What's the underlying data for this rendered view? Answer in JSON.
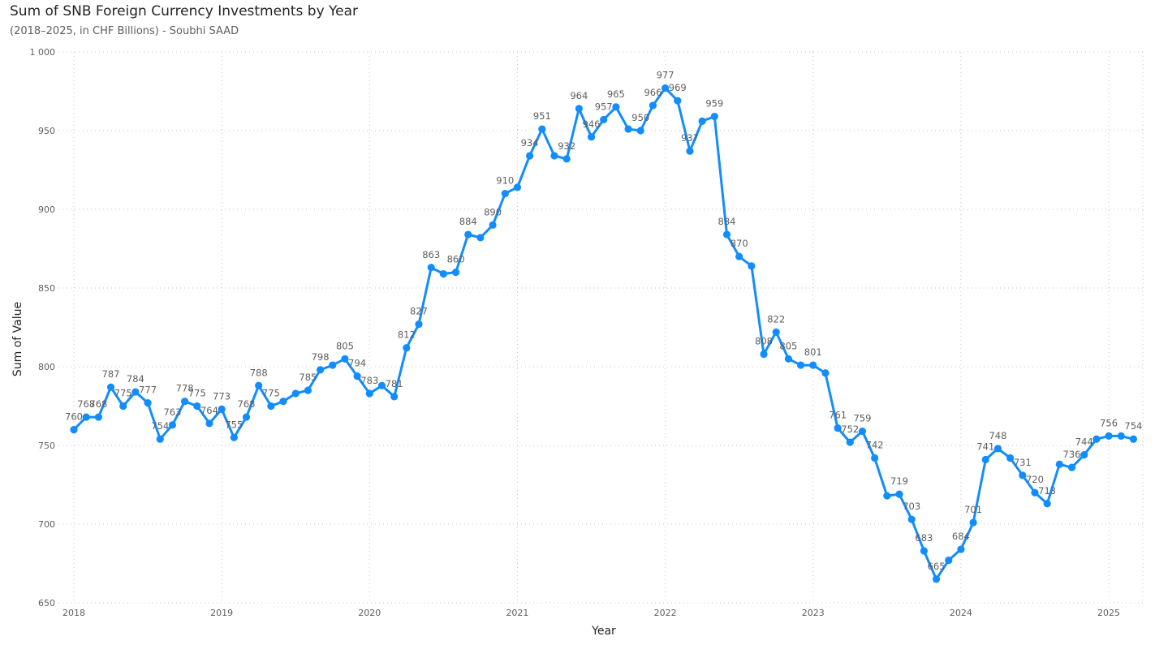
{
  "chart_data": {
    "type": "line",
    "title": "Sum of SNB Foreign Currency Investments by Year",
    "subtitle": "(2018–2025, in CHF Billions) - Soubhi SAAD",
    "xlabel": "Year",
    "ylabel": "Sum of Value",
    "x_start_year": 2018,
    "x_tick_labels": [
      "2018",
      "2019",
      "2020",
      "2021",
      "2022",
      "2023",
      "2024",
      "2025"
    ],
    "y_tick_labels": [
      "650",
      "700",
      "750",
      "800",
      "850",
      "900",
      "950",
      "1 000"
    ],
    "ylim": [
      650,
      1000
    ],
    "xlim": [
      2018,
      2025.25
    ],
    "grid": true,
    "color": "#118DFF",
    "series": [
      {
        "values": [
          760,
          768,
          768,
          787,
          775,
          784,
          777,
          754,
          763,
          778,
          775,
          764,
          773,
          755,
          768,
          788,
          775,
          778,
          783,
          785,
          798,
          801,
          805,
          794,
          783,
          788,
          781,
          812,
          827,
          863,
          859,
          860,
          884,
          882,
          890,
          910,
          914,
          934,
          951,
          934,
          932,
          964,
          946,
          957,
          965,
          951,
          950,
          966,
          977,
          969,
          937,
          956,
          959,
          884,
          870,
          864,
          808,
          822,
          805,
          801,
          801,
          796,
          761,
          752,
          759,
          742,
          718,
          719,
          703,
          683,
          665,
          677,
          684,
          701,
          741,
          748,
          742,
          731,
          720,
          713,
          738,
          736,
          744,
          754,
          756,
          756,
          754
        ],
        "labels": [
          "760",
          "768",
          "768",
          "787",
          "775",
          "784",
          "777",
          "754",
          "763",
          "778",
          "775",
          "764",
          "773",
          "755",
          "768",
          "788",
          "775",
          "",
          "",
          "785",
          "798",
          "",
          "805",
          "794",
          "783",
          "",
          "781",
          "812",
          "827",
          "863",
          "",
          "860",
          "884",
          "",
          "890",
          "910",
          "",
          "934",
          "951",
          "",
          "932",
          "964",
          "946",
          "957",
          "965",
          "",
          "950",
          "966",
          "977",
          "969",
          "937",
          "",
          "959",
          "884",
          "870",
          "",
          "808",
          "822",
          "805",
          "",
          "801",
          "",
          "761",
          "752",
          "759",
          "742",
          "",
          "719",
          "703",
          "683",
          "665",
          "",
          "684",
          "701",
          "741",
          "748",
          "",
          "731",
          "720",
          "713",
          "",
          "736",
          "744",
          "",
          "756",
          "",
          "754"
        ]
      }
    ]
  }
}
